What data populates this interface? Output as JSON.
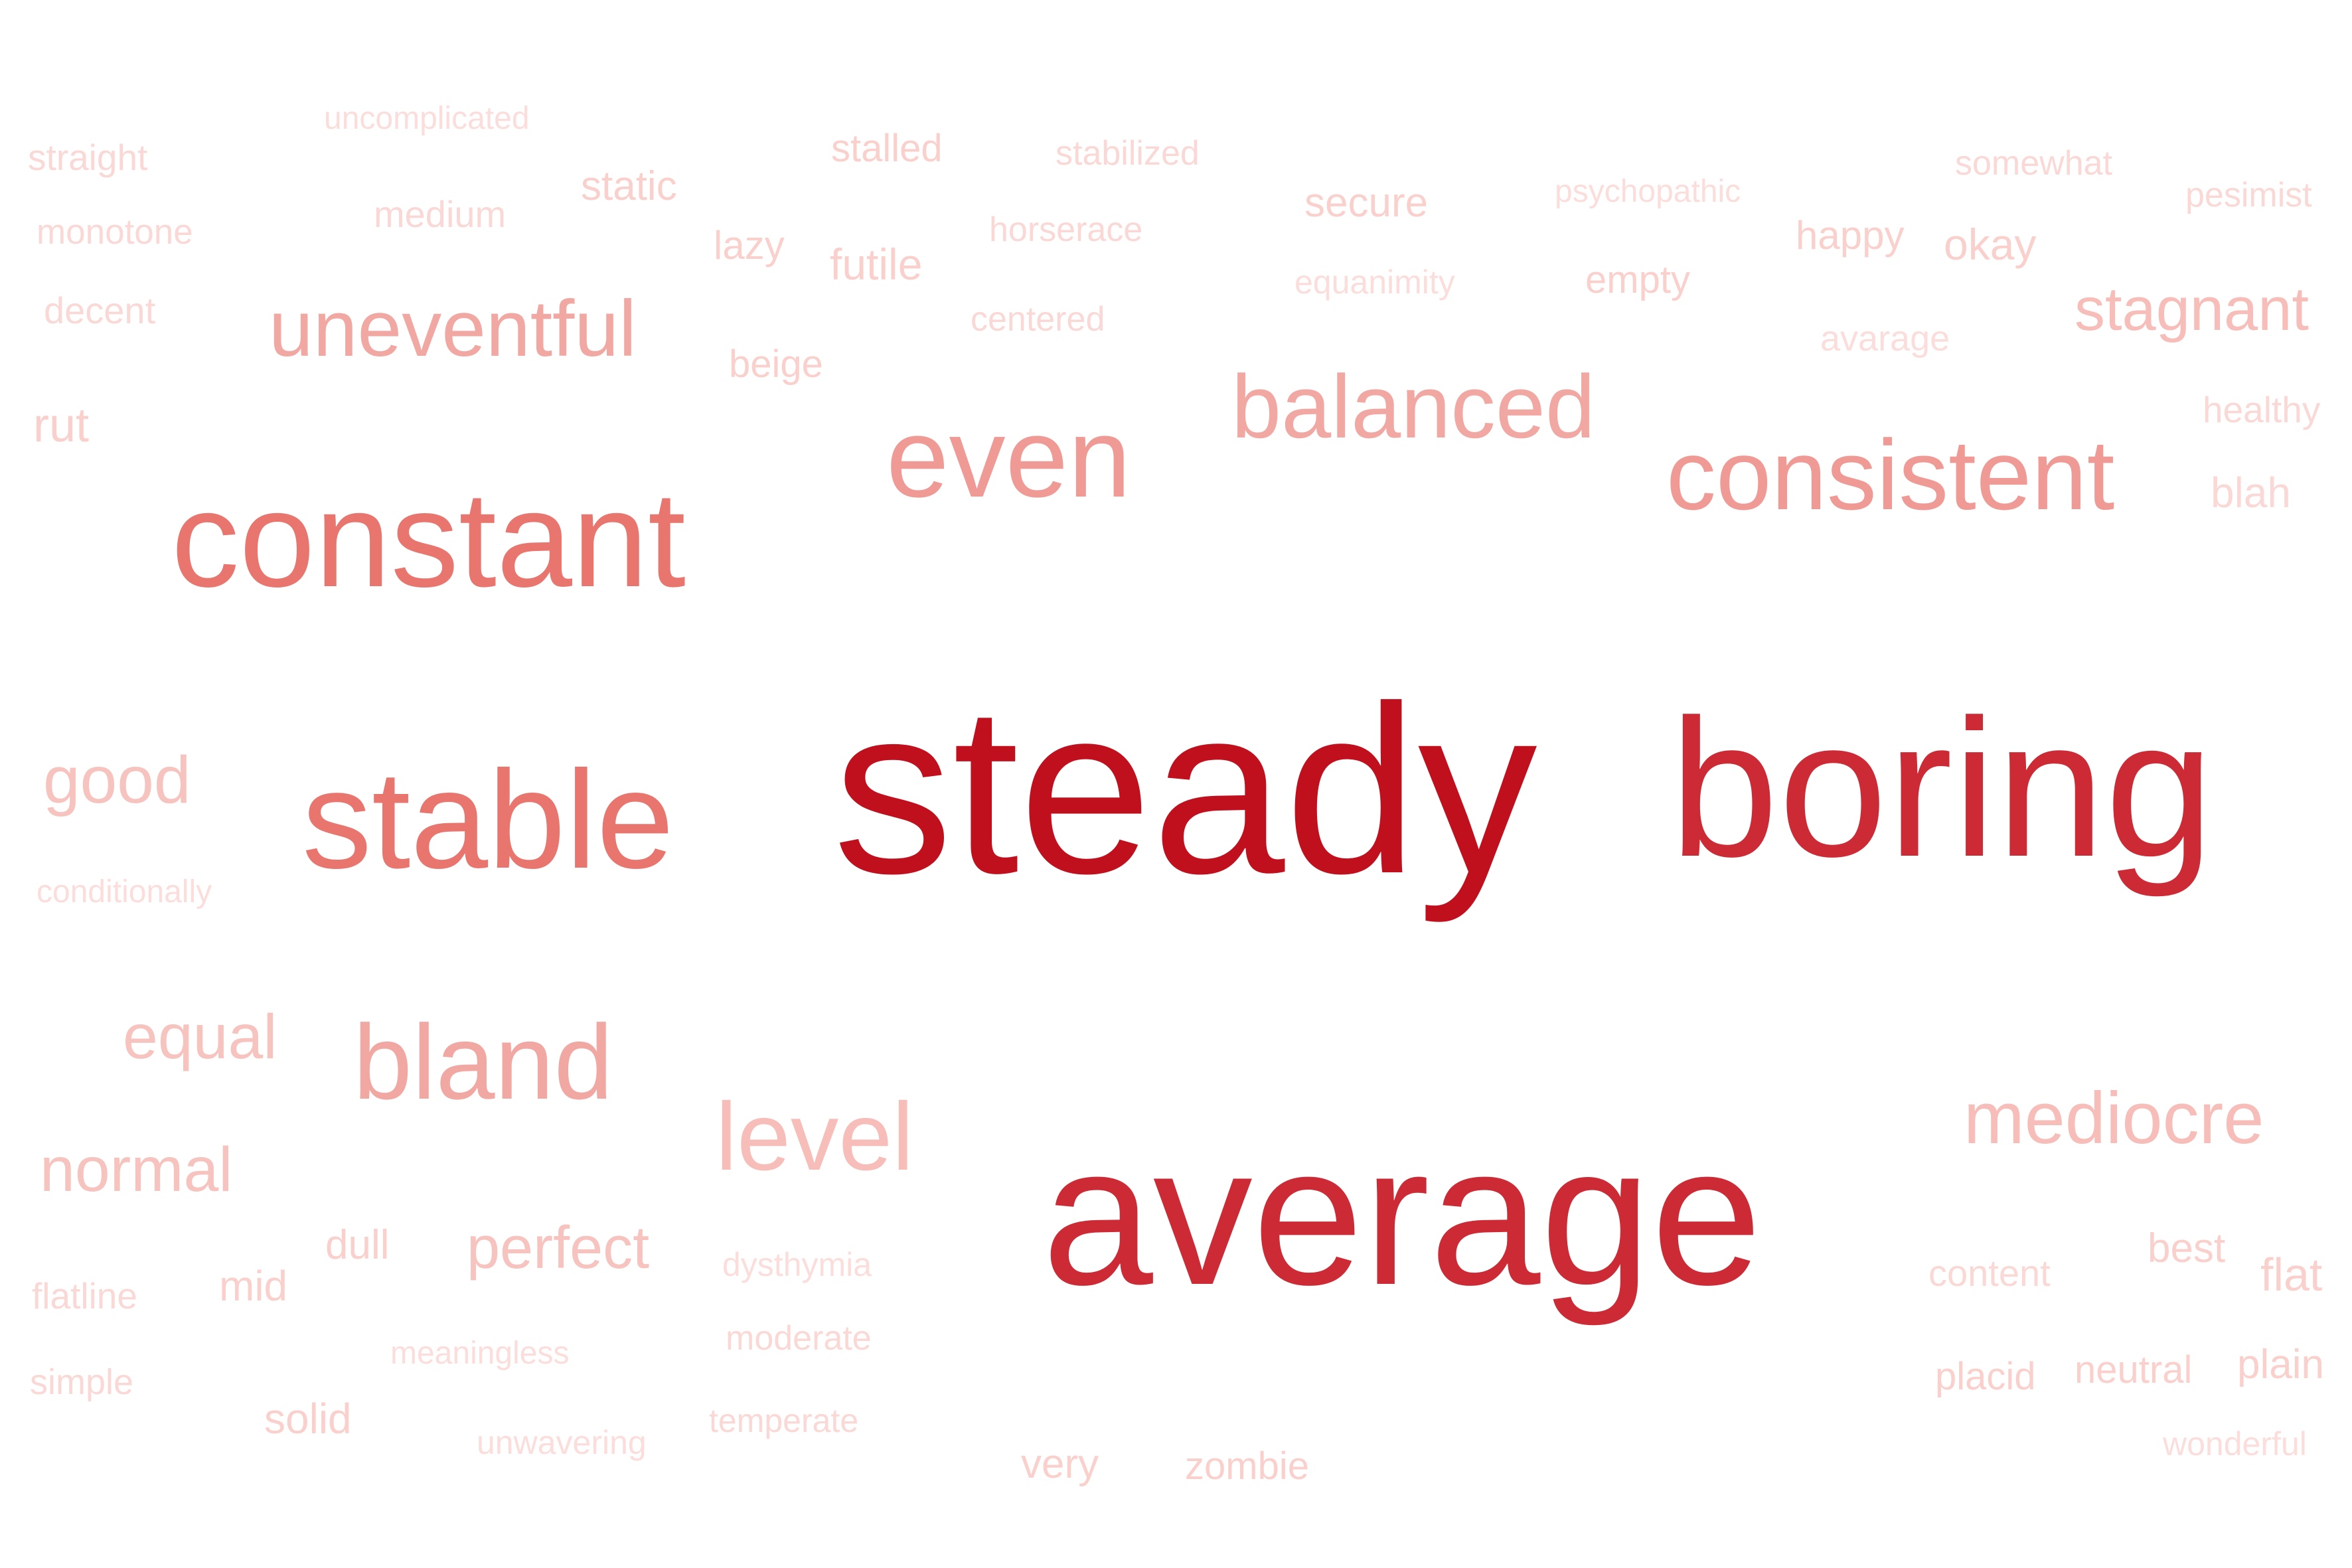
{
  "words": [
    {
      "text": "steady",
      "weight": 1.0
    },
    {
      "text": "boring",
      "weight": 0.8
    },
    {
      "text": "average",
      "weight": 0.8
    },
    {
      "text": "constant",
      "weight": 0.55
    },
    {
      "text": "stable",
      "weight": 0.5
    },
    {
      "text": "even",
      "weight": 0.42
    },
    {
      "text": "consistent",
      "weight": 0.4
    },
    {
      "text": "balanced",
      "weight": 0.35
    },
    {
      "text": "bland",
      "weight": 0.38
    },
    {
      "text": "uneventful",
      "weight": 0.3
    },
    {
      "text": "level",
      "weight": 0.3
    },
    {
      "text": "mediocre",
      "weight": 0.3
    },
    {
      "text": "stagnant",
      "weight": 0.22
    },
    {
      "text": "good",
      "weight": 0.2
    },
    {
      "text": "equal",
      "weight": 0.2
    },
    {
      "text": "normal",
      "weight": 0.2
    },
    {
      "text": "perfect",
      "weight": 0.2
    },
    {
      "text": "rut",
      "weight": 0.15
    },
    {
      "text": "secure",
      "weight": 0.15
    },
    {
      "text": "static",
      "weight": 0.15
    },
    {
      "text": "stalled",
      "weight": 0.15
    },
    {
      "text": "lazy",
      "weight": 0.15
    },
    {
      "text": "futile",
      "weight": 0.15
    },
    {
      "text": "okay",
      "weight": 0.15
    },
    {
      "text": "happy",
      "weight": 0.15
    },
    {
      "text": "empty",
      "weight": 0.15
    },
    {
      "text": "beige",
      "weight": 0.15
    },
    {
      "text": "dull",
      "weight": 0.15
    },
    {
      "text": "mid",
      "weight": 0.15
    },
    {
      "text": "solid",
      "weight": 0.15
    },
    {
      "text": "best",
      "weight": 0.15
    },
    {
      "text": "flat",
      "weight": 0.15
    },
    {
      "text": "plain",
      "weight": 0.15
    },
    {
      "text": "neutral",
      "weight": 0.15
    },
    {
      "text": "placid",
      "weight": 0.15
    },
    {
      "text": "very",
      "weight": 0.15
    },
    {
      "text": "zombie",
      "weight": 0.15
    },
    {
      "text": "blah",
      "weight": 0.15
    },
    {
      "text": "healthy",
      "weight": 0.12
    },
    {
      "text": "content",
      "weight": 0.12
    },
    {
      "text": "straight",
      "weight": 0.12
    },
    {
      "text": "monotone",
      "weight": 0.12
    },
    {
      "text": "decent",
      "weight": 0.12
    },
    {
      "text": "medium",
      "weight": 0.12
    },
    {
      "text": "stabilized",
      "weight": 0.12
    },
    {
      "text": "horserace",
      "weight": 0.12
    },
    {
      "text": "centered",
      "weight": 0.12
    },
    {
      "text": "somewhat",
      "weight": 0.12
    },
    {
      "text": "pesimist",
      "weight": 0.12
    },
    {
      "text": "flatline",
      "weight": 0.12
    },
    {
      "text": "simple",
      "weight": 0.12
    },
    {
      "text": "moderate",
      "weight": 0.12
    },
    {
      "text": "temperate",
      "weight": 0.12
    },
    {
      "text": "dysthymia",
      "weight": 0.1
    },
    {
      "text": "unwavering",
      "weight": 0.1
    },
    {
      "text": "meaningless",
      "weight": 0.1
    },
    {
      "text": "conditionally",
      "weight": 0.1
    },
    {
      "text": "uncomplicated",
      "weight": 0.1
    },
    {
      "text": "psychopathic",
      "weight": 0.1
    },
    {
      "text": "equanimity",
      "weight": 0.1
    },
    {
      "text": "avarage",
      "weight": 0.1
    },
    {
      "text": "wonderful",
      "weight": 0.1
    }
  ]
}
